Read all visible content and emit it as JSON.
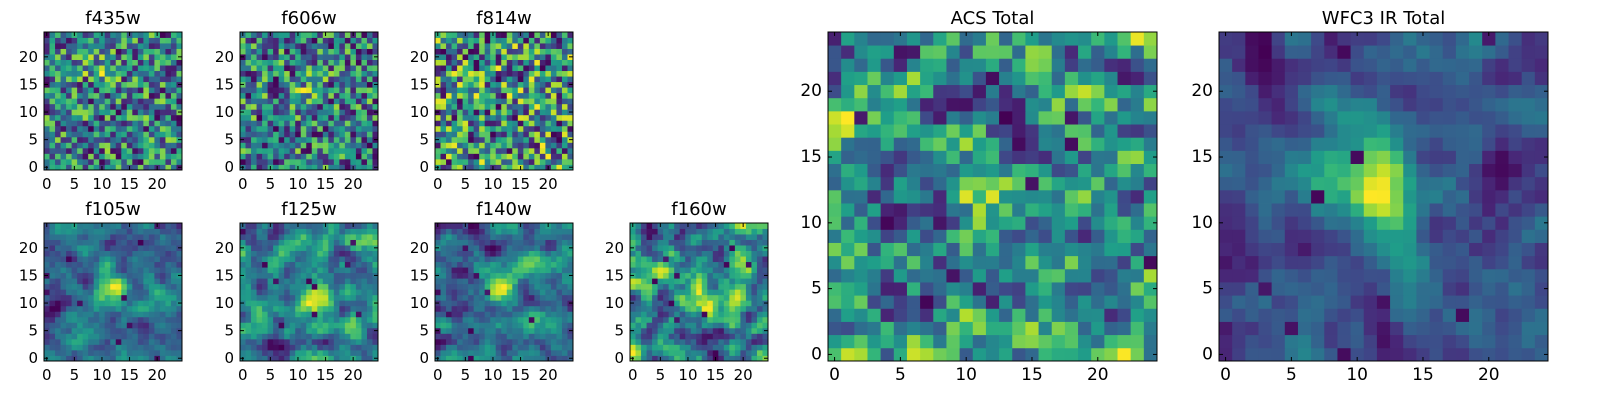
{
  "chart_data": [
    {
      "type": "heatmap",
      "title": "f435w",
      "xlim": [
        0,
        24
      ],
      "ylim": [
        0,
        24
      ],
      "xticks": [
        "0",
        "5",
        "10",
        "15",
        "20"
      ],
      "yticks": [
        "0",
        "5",
        "10",
        "15",
        "20"
      ],
      "pixels": [
        25,
        25
      ],
      "colormap": "viridis",
      "seed": 435,
      "smoothness": 0.1,
      "features": [
        {
          "x": 10,
          "y": 17,
          "strength": 0.25
        }
      ]
    },
    {
      "type": "heatmap",
      "title": "f606w",
      "xlim": [
        0,
        24
      ],
      "ylim": [
        0,
        24
      ],
      "xticks": [
        "0",
        "5",
        "10",
        "15",
        "20"
      ],
      "yticks": [
        "0",
        "5",
        "10",
        "15",
        "20"
      ],
      "pixels": [
        25,
        25
      ],
      "colormap": "viridis",
      "seed": 606,
      "smoothness": 0.1,
      "features": [
        {
          "x": 12,
          "y": 14,
          "strength": 0.2
        }
      ]
    },
    {
      "type": "heatmap",
      "title": "f814w",
      "xlim": [
        0,
        24
      ],
      "ylim": [
        0,
        24
      ],
      "xticks": [
        "0",
        "5",
        "10",
        "15",
        "20"
      ],
      "yticks": [
        "0",
        "5",
        "10",
        "15",
        "20"
      ],
      "pixels": [
        25,
        25
      ],
      "colormap": "viridis",
      "seed": 814,
      "smoothness": 0.1,
      "features": []
    },
    {
      "type": "heatmap",
      "title": "f105w",
      "xlim": [
        0,
        24
      ],
      "ylim": [
        0,
        24
      ],
      "xticks": [
        "0",
        "5",
        "10",
        "15",
        "20"
      ],
      "yticks": [
        "0",
        "5",
        "10",
        "15",
        "20"
      ],
      "pixels": [
        25,
        25
      ],
      "colormap": "viridis",
      "seed": 105,
      "smoothness": 0.45,
      "features": [
        {
          "x": 12,
          "y": 13,
          "strength": 0.4
        }
      ]
    },
    {
      "type": "heatmap",
      "title": "f125w",
      "xlim": [
        0,
        24
      ],
      "ylim": [
        0,
        24
      ],
      "xticks": [
        "0",
        "5",
        "10",
        "15",
        "20"
      ],
      "yticks": [
        "0",
        "5",
        "10",
        "15",
        "20"
      ],
      "pixels": [
        25,
        25
      ],
      "colormap": "viridis",
      "seed": 125,
      "smoothness": 0.45,
      "features": [
        {
          "x": 13,
          "y": 11,
          "strength": 0.4
        }
      ]
    },
    {
      "type": "heatmap",
      "title": "f140w",
      "xlim": [
        0,
        24
      ],
      "ylim": [
        0,
        24
      ],
      "xticks": [
        "0",
        "5",
        "10",
        "15",
        "20"
      ],
      "yticks": [
        "0",
        "5",
        "10",
        "15",
        "20"
      ],
      "pixels": [
        25,
        25
      ],
      "colormap": "viridis",
      "seed": 140,
      "smoothness": 0.45,
      "features": [
        {
          "x": 11,
          "y": 13,
          "strength": 0.35
        }
      ]
    },
    {
      "type": "heatmap",
      "title": "f160w",
      "xlim": [
        0,
        24
      ],
      "ylim": [
        0,
        24
      ],
      "xticks": [
        "0",
        "5",
        "10",
        "15",
        "20"
      ],
      "yticks": [
        "0",
        "5",
        "10",
        "15",
        "20"
      ],
      "pixels": [
        25,
        25
      ],
      "colormap": "viridis",
      "seed": 160,
      "smoothness": 0.45,
      "features": [
        {
          "x": 12,
          "y": 11,
          "strength": 0.35
        }
      ]
    },
    {
      "type": "heatmap",
      "title": "ACS Total",
      "xlim": [
        0,
        24
      ],
      "ylim": [
        0,
        24
      ],
      "xticks": [
        "0",
        "5",
        "10",
        "15",
        "20"
      ],
      "yticks": [
        "0",
        "5",
        "10",
        "15",
        "20"
      ],
      "pixels": [
        25,
        25
      ],
      "colormap": "viridis",
      "seed": 999,
      "smoothness": 0.3,
      "features": [
        {
          "x": 12,
          "y": 12,
          "strength": 0.25
        },
        {
          "x": 3,
          "y": 19,
          "strength": 0.2
        }
      ]
    },
    {
      "type": "heatmap",
      "title": "WFC3 IR Total",
      "xlim": [
        0,
        24
      ],
      "ylim": [
        0,
        24
      ],
      "xticks": [
        "0",
        "5",
        "10",
        "15",
        "20"
      ],
      "yticks": [
        "0",
        "5",
        "10",
        "15",
        "20"
      ],
      "pixels": [
        25,
        25
      ],
      "colormap": "viridis",
      "seed": 321,
      "smoothness": 0.6,
      "features": [
        {
          "x": 12,
          "y": 13,
          "strength": 0.55
        },
        {
          "x": 9,
          "y": 14,
          "strength": 0.3
        }
      ]
    }
  ]
}
